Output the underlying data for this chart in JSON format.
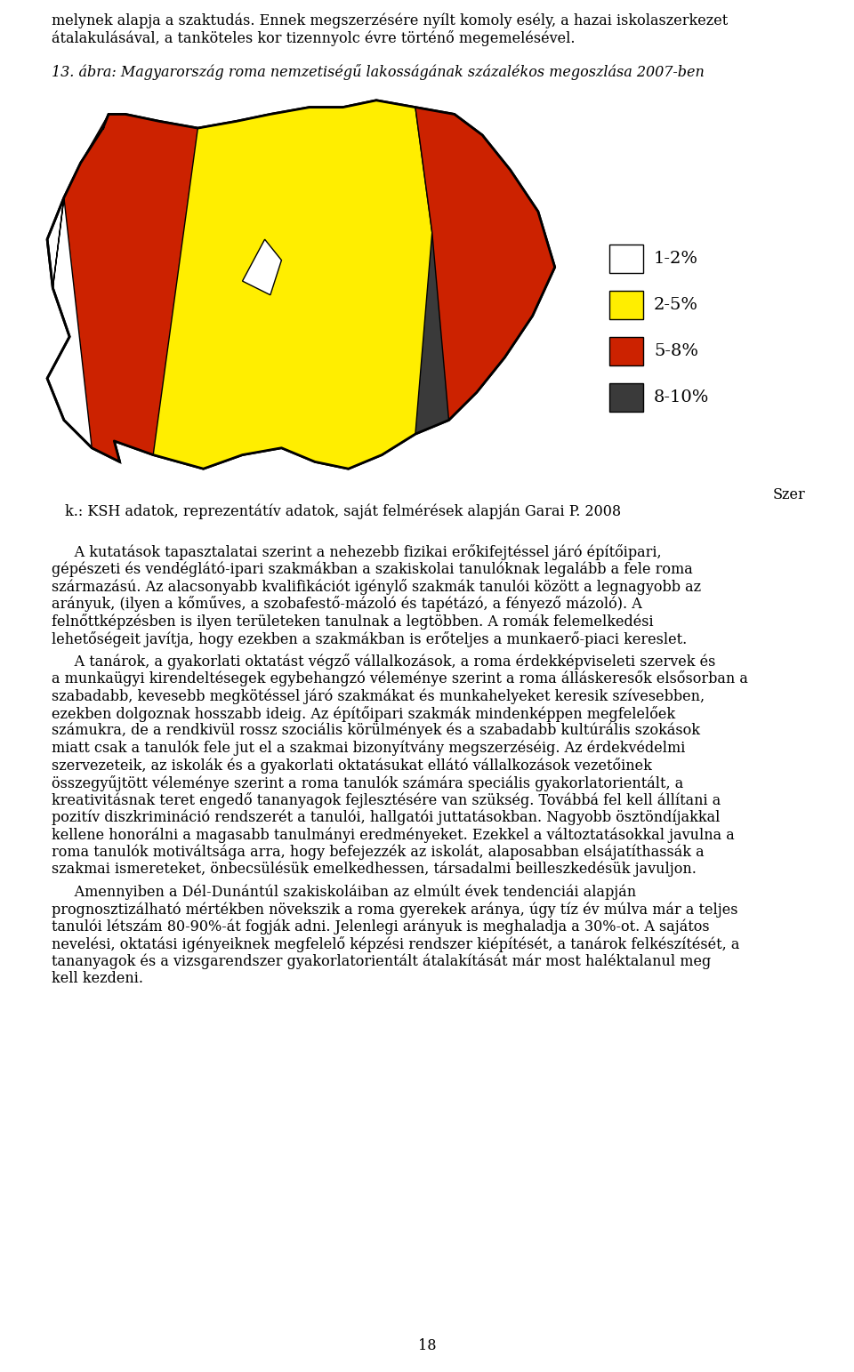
{
  "page_width": 9.6,
  "page_height": 15.43,
  "background_color": "#ffffff",
  "line1": "melynek alapja a szaktudás. Ennek megszerzésére nyílt komoly esély, a hazai iskolaszerkezet",
  "line2": "átalakulásával, a tanköteles kor tizennyolc évre történő megemelésével.",
  "figure_caption": "13. ábra: Magyarország roma nemzetiségű lakosságának százalékos megoszlása 2007-ben",
  "source_note": "k.: KSH adatok, reprezentátív adatok, saját felmérések alapján Garai P. 2008",
  "source_right": "Szer",
  "legend_items": [
    {
      "label": "1-2%",
      "color": "#ffffff"
    },
    {
      "label": "2-5%",
      "color": "#ffee00"
    },
    {
      "label": "5-8%",
      "color": "#cc2200"
    },
    {
      "label": "8-10%",
      "color": "#3a3a3a"
    }
  ],
  "para1": [
    "     A kutatások tapasztalatai szerint a nehezebb fizikai erőkifejtéssel járó építőipari,",
    "gépészeti és vendéglátó-ipari szakmákban a szakiskolai tanulóknak legalább a fele roma",
    "származású. Az alacsonyabb kvalifikációt igénylő szakmák tanulói között a legnagyobb az",
    "arányuk, (ilyen a kőműves, a szobafestő-mázoló és tapétázó, a fényező mázoló). A",
    "felnőttképzésben is ilyen területeken tanulnak a legtöbben. A romák felemelkedési",
    "lehetőségeit javítja, hogy ezekben a szakmákban is erőteljes a munkaerő-piaci kereslet."
  ],
  "para2": [
    "     A tanárok, a gyakorlati oktatást végző vállalkozások, a roma érdekképviseleti szervek és",
    "a munkaügyi kirendeltésegek egybehangzó véleménye szerint a roma álláskeresők elsősorban a",
    "szabadabb, kevesebb megkötéssel járó szakmákat és munkahelyeket keresik szívesebben,",
    "ezekben dolgoznak hosszabb ideig. Az építőipari szakmák mindenképpen megfelelőek",
    "számukra, de a rendkivül rossz szociális körülmények és a szabadabb kultúrális szokások",
    "miatt csak a tanulók fele jut el a szakmai bizonyítvány megszerzéséig. Az érdekvédelmi",
    "szervezeteik, az iskolák és a gyakorlati oktatásukat ellátó vállalkozások vezetőinek",
    "összegyűjtött véleménye szerint a roma tanulók számára speciális gyakorlatorientált, a",
    "kreativitásnak teret engedő tananyagok fejlesztésére van szükség. Továbbá fel kell állítani a",
    "pozitív diszkrimináció rendszerét a tanulói, hallgatói juttatásokban. Nagyobb ösztöndíjakkal",
    "kellene honorálni a magasabb tanulmányi eredményeket. Ezekkel a változtatásokkal javulna a",
    "roma tanulók motiváltsága arra, hogy befejezzék az iskolát, alaposabban elsájatíthassák a",
    "szakmai ismereteket, önbecsülésük emelkedhessen, társadalmi beilleszkedésük javuljon."
  ],
  "para3": [
    "     Amennyiben a Dél-Dunántúl szakiskoláiban az elmúlt évek tendenciái alapján",
    "prognosztizálható mértékben növekszik a roma gyerekek aránya, úgy tíz év múlva már a teljes",
    "tanulói létszám 80-90%-át fogják adni. Jelenlegi arányuk is meghaladja a 30%-ot. A sajátos",
    "nevelési, oktatási igényeiknek megfelelő képzési rendszer kiépítését, a tanárok felkészítését, a",
    "tananyagok és a vizsgarendszer gyakorlatorientált átalakítását már most haléktalanul meg",
    "kell kezdeni."
  ],
  "page_number": "18",
  "font_size_body": 11.5,
  "font_size_caption": 11.5
}
